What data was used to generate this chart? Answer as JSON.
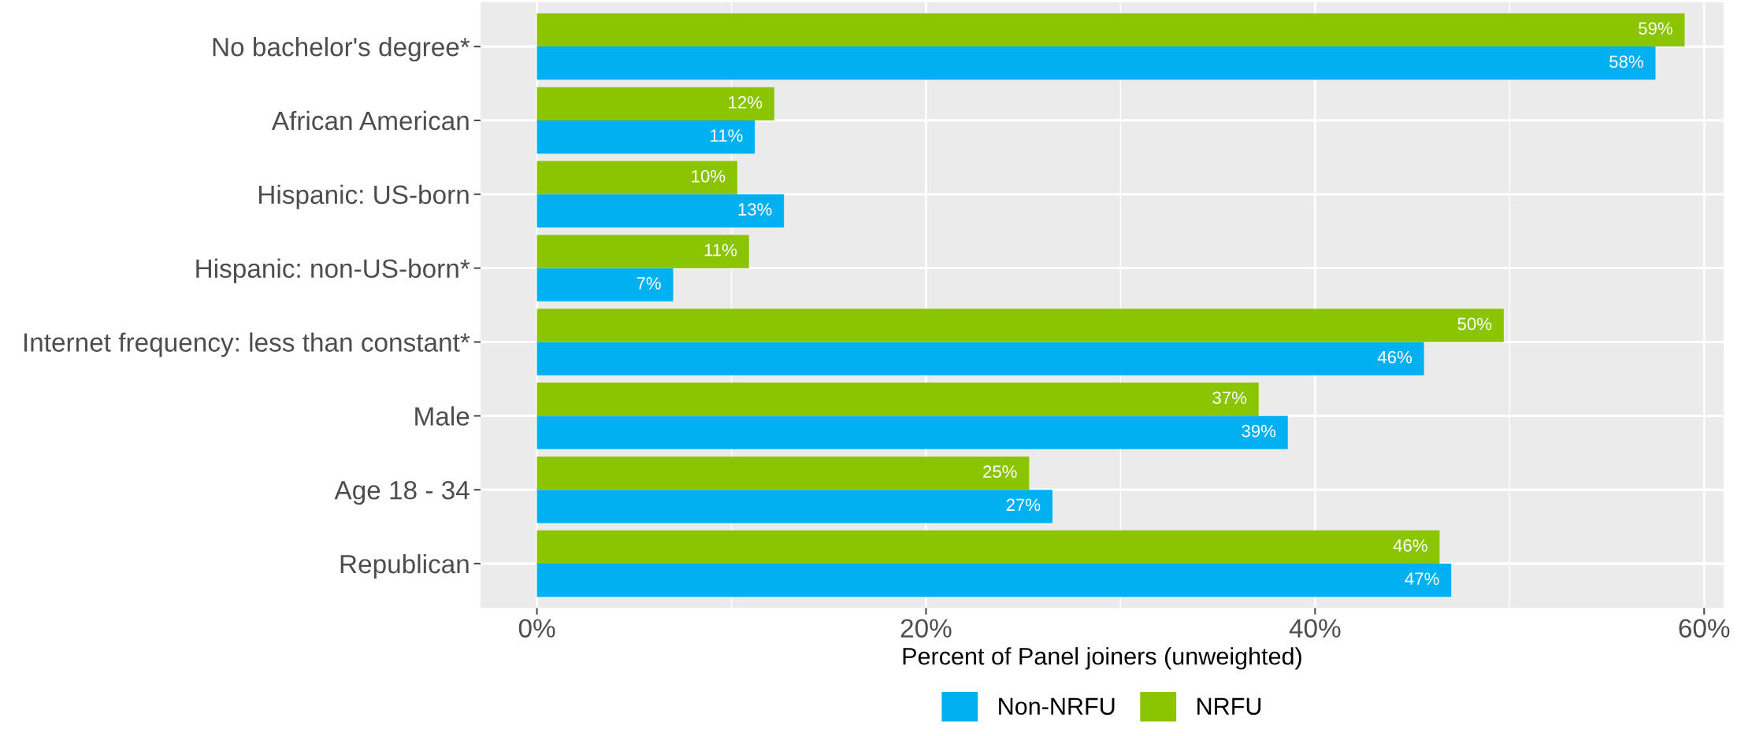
{
  "chart_data": {
    "type": "bar",
    "orientation": "horizontal",
    "categories": [
      "No bachelor's degree*",
      "African American",
      "Hispanic: US-born",
      "Hispanic: non-US-born*",
      "Internet frequency: less than constant*",
      "Male",
      "Age 18 - 34",
      "Republican"
    ],
    "series": [
      {
        "name": "Non-NRFU",
        "color": "#00b0f0",
        "values": [
          57.5,
          11.2,
          12.7,
          7.0,
          45.6,
          38.6,
          26.5,
          47.0
        ],
        "value_labels": [
          "58%",
          "11%",
          "13%",
          "7%",
          "46%",
          "39%",
          "27%",
          "47%"
        ]
      },
      {
        "name": "NRFU",
        "color": "#8bc400",
        "values": [
          59.0,
          12.2,
          10.3,
          10.9,
          49.7,
          37.1,
          25.3,
          46.4
        ],
        "value_labels": [
          "59%",
          "12%",
          "10%",
          "11%",
          "50%",
          "37%",
          "25%",
          "46%"
        ]
      }
    ],
    "xlabel": "Percent of Panel joiners (unweighted)",
    "xlim": [
      -2.9,
      61
    ],
    "xticks": [
      {
        "value": 0,
        "label": "0%"
      },
      {
        "value": 20,
        "label": "20%"
      },
      {
        "value": 40,
        "label": "40%"
      },
      {
        "value": 60,
        "label": "60%"
      }
    ],
    "grid": true,
    "legend": "bottom"
  }
}
